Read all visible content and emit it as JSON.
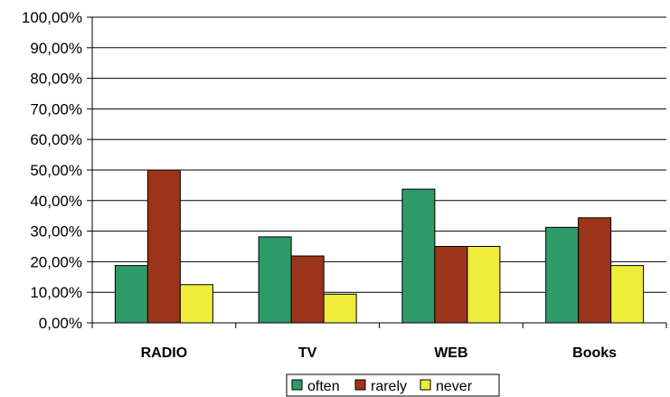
{
  "chart_data": {
    "type": "bar",
    "categories": [
      "RADIO",
      "TV",
      "WEB",
      "Books"
    ],
    "series": [
      {
        "name": "often",
        "values": [
          18.75,
          28.13,
          43.75,
          31.25
        ],
        "color": "#2e9a68"
      },
      {
        "name": "rarely",
        "values": [
          50.0,
          21.88,
          25.0,
          34.38
        ],
        "color": "#9b3418"
      },
      {
        "name": "never",
        "values": [
          12.5,
          9.38,
          25.0,
          18.75
        ],
        "color": "#f0ec3c"
      }
    ],
    "yticks": [
      "0,00%",
      "10,00%",
      "20,00%",
      "30,00%",
      "40,00%",
      "50,00%",
      "60,00%",
      "70,00%",
      "80,00%",
      "90,00%",
      "100,00%"
    ],
    "ylim": [
      0,
      100
    ],
    "grid": true,
    "legend_position": "bottom",
    "title": "",
    "xlabel": "",
    "ylabel": ""
  }
}
